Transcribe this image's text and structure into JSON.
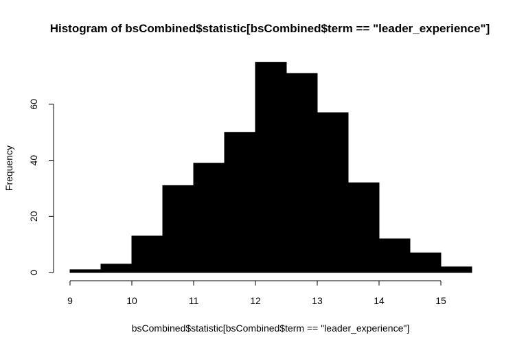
{
  "chart_data": {
    "type": "bar",
    "title": "Histogram of bsCombined$statistic[bsCombined$term == \"leader_experience\"]",
    "xlabel": "bsCombined$statistic[bsCombined$term == \"leader_experience\"]",
    "ylabel": "Frequency",
    "bin_edges": [
      9,
      9.5,
      10,
      10.5,
      11,
      11.5,
      12,
      12.5,
      13,
      13.5,
      14,
      14.5,
      15,
      15.5
    ],
    "values": [
      1,
      3,
      13,
      31,
      39,
      50,
      75,
      71,
      57,
      32,
      12,
      7,
      2
    ],
    "xlim": [
      9,
      15.5
    ],
    "ylim": [
      0,
      75
    ],
    "x_ticks": [
      9,
      10,
      11,
      12,
      13,
      14,
      15
    ],
    "y_ticks": [
      0,
      20,
      40,
      60
    ],
    "bar_color": "#000000",
    "grid": false,
    "legend": "none"
  }
}
